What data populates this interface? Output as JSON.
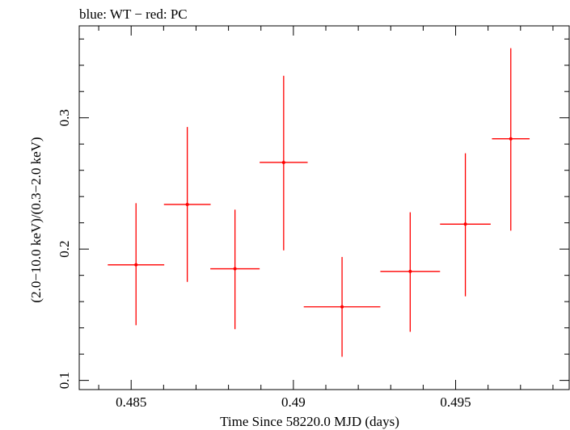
{
  "chart_data": {
    "type": "scatter",
    "title": "blue: WT − red: PC",
    "xlabel": "Time Since 58220.0 MJD (days)",
    "ylabel": "(2.0−10.0 keV)/(0.3−2.0 keV)",
    "xlim": [
      0.4834,
      0.4985
    ],
    "ylim": [
      0.093,
      0.37
    ],
    "x_major_ticks": [
      0.485,
      0.49,
      0.495
    ],
    "x_tick_labels": [
      "0.485",
      "0.49",
      "0.495"
    ],
    "x_minor_step": 0.001,
    "y_major_ticks": [
      0.1,
      0.2,
      0.3
    ],
    "y_tick_labels": [
      "0.1",
      "0.2",
      "0.3"
    ],
    "y_minor_step": 0.02,
    "grid": false,
    "series": [
      {
        "name": "PC",
        "color": "#ff0000",
        "points": [
          {
            "x": 0.48515,
            "xerr": 0.00087,
            "y": 0.188,
            "yerr_low": 0.046,
            "yerr_high": 0.047
          },
          {
            "x": 0.48673,
            "xerr": 0.00072,
            "y": 0.234,
            "yerr_low": 0.059,
            "yerr_high": 0.059
          },
          {
            "x": 0.4882,
            "xerr": 0.00076,
            "y": 0.185,
            "yerr_low": 0.046,
            "yerr_high": 0.045
          },
          {
            "x": 0.4897,
            "xerr": 0.00074,
            "y": 0.266,
            "yerr_low": 0.067,
            "yerr_high": 0.066
          },
          {
            "x": 0.4915,
            "xerr": 0.00118,
            "y": 0.156,
            "yerr_low": 0.038,
            "yerr_high": 0.038
          },
          {
            "x": 0.4936,
            "xerr": 0.00092,
            "y": 0.183,
            "yerr_low": 0.046,
            "yerr_high": 0.045
          },
          {
            "x": 0.4953,
            "xerr": 0.00078,
            "y": 0.219,
            "yerr_low": 0.055,
            "yerr_high": 0.054
          },
          {
            "x": 0.4967,
            "xerr": 0.00058,
            "y": 0.284,
            "yerr_low": 0.07,
            "yerr_high": 0.069
          }
        ]
      }
    ]
  }
}
